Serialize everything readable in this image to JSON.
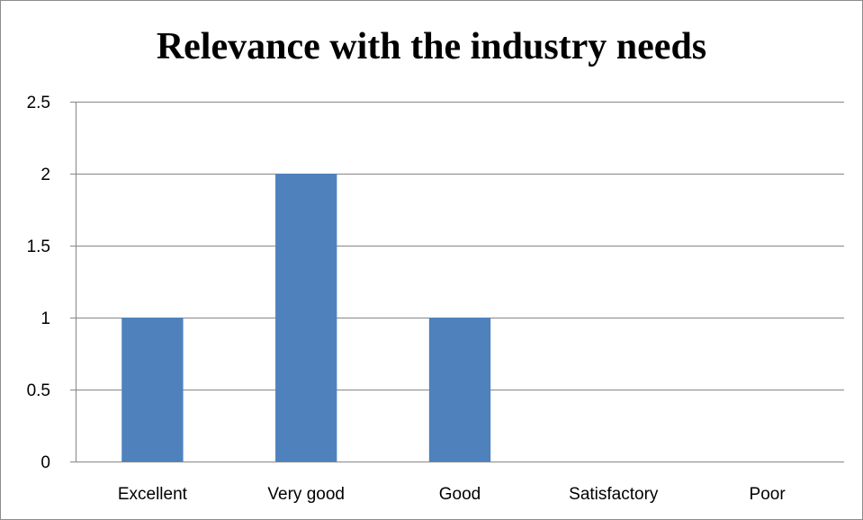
{
  "chart_data": {
    "type": "bar",
    "title": "Relevance with the industry needs",
    "categories": [
      "Excellent",
      "Very good",
      "Good",
      "Satisfactory",
      "Poor"
    ],
    "values": [
      1,
      2,
      1,
      0,
      0
    ],
    "xlabel": "",
    "ylabel": "",
    "ylim": [
      0,
      2.5
    ],
    "yticks": [
      "0",
      "0.5",
      "1",
      "1.5",
      "2",
      "2.5"
    ],
    "grid": true,
    "legend": "none",
    "colors": {
      "bar": "#4f81bd",
      "gridline": "#868686",
      "axis": "#868686"
    }
  }
}
